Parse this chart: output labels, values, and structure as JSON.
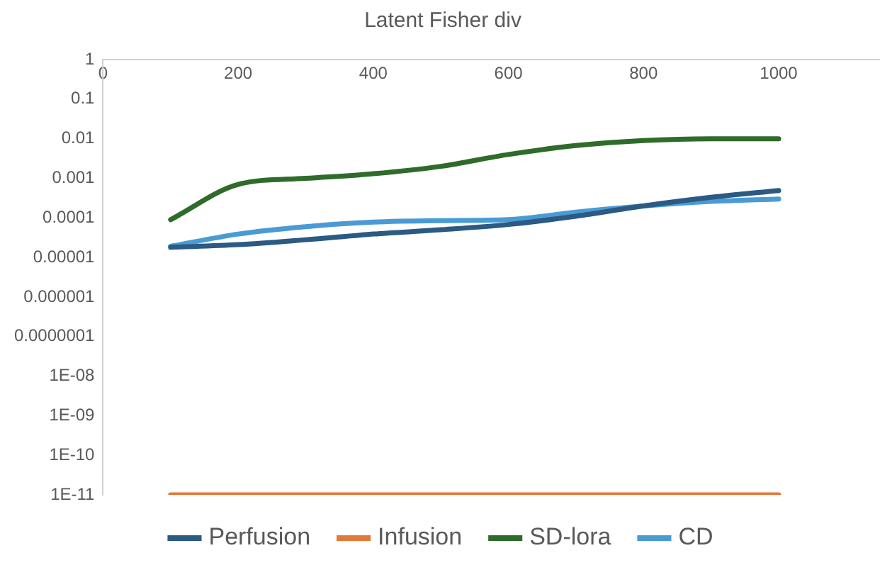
{
  "chart_data": {
    "type": "line",
    "title": "Latent Fisher div",
    "x": [
      100,
      200,
      300,
      400,
      500,
      600,
      700,
      800,
      900,
      1000
    ],
    "series": [
      {
        "name": "Perfusion",
        "color": "#2b5a82",
        "values": [
          1.8e-05,
          2.1e-05,
          2.8e-05,
          3.9e-05,
          5e-05,
          6.8e-05,
          0.00011,
          0.0002,
          0.00033,
          0.00049
        ]
      },
      {
        "name": "Infusion",
        "color": "#e2793a",
        "values": [
          1e-11,
          1e-11,
          1e-11,
          1e-11,
          1e-11,
          1e-11,
          1e-11,
          1e-11,
          1e-11,
          1e-11
        ]
      },
      {
        "name": "SD-lora",
        "color": "#2f6b2a",
        "values": [
          9e-05,
          0.0007,
          0.001,
          0.0013,
          0.002,
          0.004,
          0.0067,
          0.009,
          0.01,
          0.01
        ]
      },
      {
        "name": "CD",
        "color": "#4a9bd4",
        "values": [
          1.9e-05,
          3.9e-05,
          6e-05,
          7.8e-05,
          8.5e-05,
          9e-05,
          0.00014,
          0.0002,
          0.00026,
          0.0003
        ]
      }
    ],
    "log": "y",
    "xlim": [
      0,
      1150
    ],
    "xticks": [
      0,
      200,
      400,
      600,
      800,
      1000
    ],
    "ylim": [
      1e-11,
      1
    ],
    "yticks": [
      1,
      0.1,
      0.01,
      0.001,
      0.0001,
      {
        "value": 1e-05,
        "label": "0.00001"
      },
      {
        "value": 1e-06,
        "label": "0.000001"
      },
      {
        "value": 1e-07,
        "label": "0.0000001"
      },
      {
        "value": 1e-08,
        "label": "1E-08"
      },
      {
        "value": 1e-09,
        "label": "1E-09"
      },
      {
        "value": 1e-10,
        "label": "1E-10"
      },
      {
        "value": 1e-11,
        "label": "1E-11"
      }
    ],
    "grid": false,
    "legend": "bottom",
    "marker": "none",
    "line_style": "solid"
  }
}
